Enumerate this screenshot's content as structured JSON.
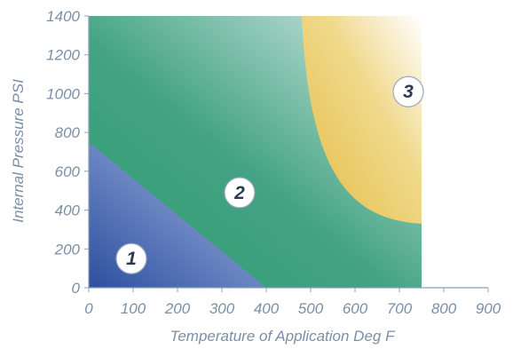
{
  "chart_data": {
    "type": "area",
    "title": "",
    "xlabel": "Temperature of Application Deg F",
    "ylabel": "Internal Pressure PSI",
    "xlim": [
      0,
      900
    ],
    "ylim": [
      0,
      1400
    ],
    "x_ticks": [
      "0",
      "100",
      "200",
      "300",
      "400",
      "500",
      "600",
      "700",
      "800",
      "900"
    ],
    "y_ticks": [
      "0",
      "200",
      "400",
      "600",
      "800",
      "1000",
      "1200",
      "1400"
    ],
    "grid": false,
    "regions": [
      {
        "label": "1",
        "label_at": {
          "x": 100,
          "y": 150
        },
        "boundary": [
          {
            "x": 0,
            "y": 750
          },
          {
            "x": 400,
            "y": 0
          }
        ],
        "color": "#3c5fae"
      },
      {
        "label": "2",
        "label_at": {
          "x": 340,
          "y": 490
        },
        "extent": {
          "x": [
            0,
            750
          ],
          "y": [
            0,
            1400
          ]
        },
        "color": "#3f9e7e"
      },
      {
        "label": "3",
        "label_at": {
          "x": 720,
          "y": 1010
        },
        "boundary": [
          {
            "x": 480,
            "y": 1400
          },
          {
            "x": 750,
            "y": 330
          }
        ],
        "color": "#e9c558"
      }
    ]
  }
}
